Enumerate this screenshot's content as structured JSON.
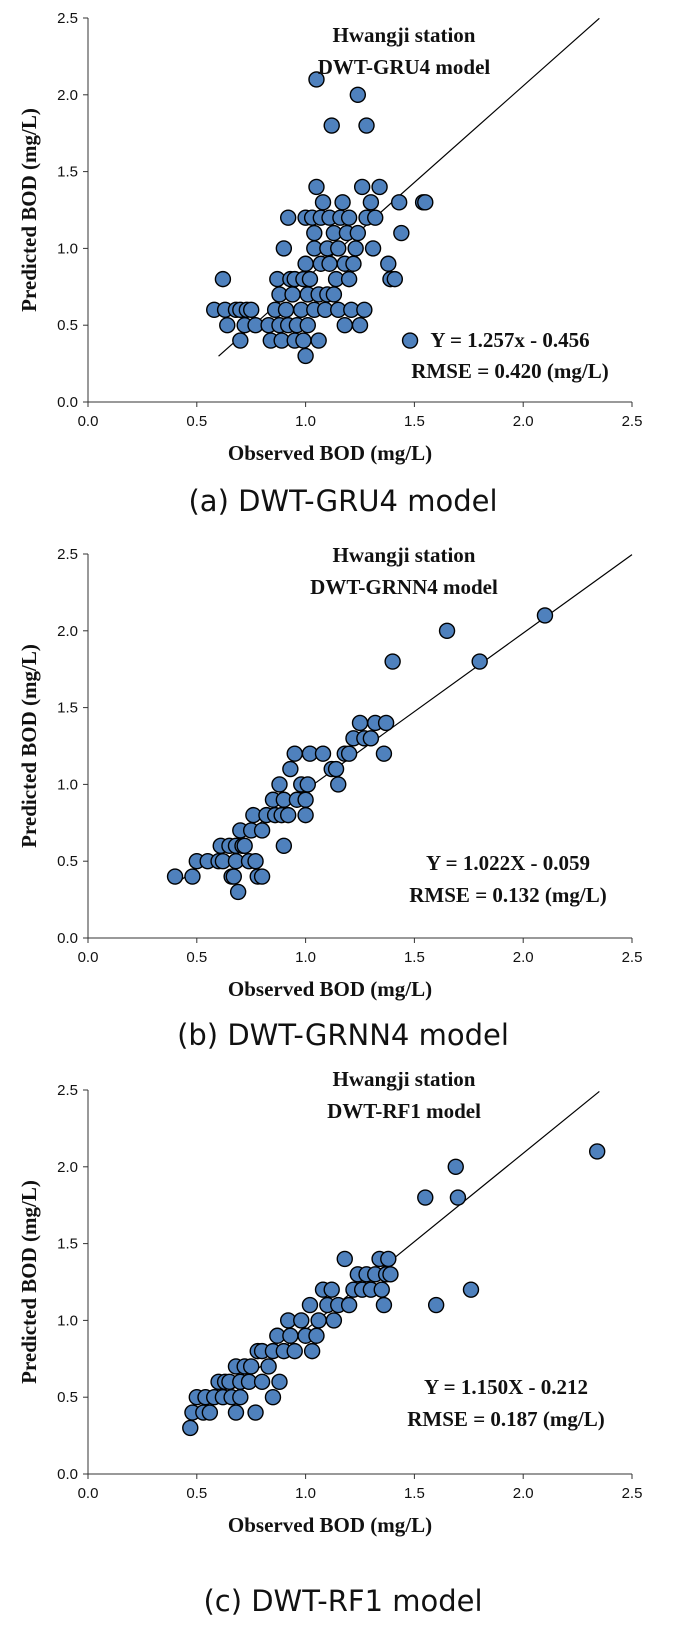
{
  "chart_data": [
    {
      "type": "scatter",
      "caption": "(a) DWT-GRU4 model",
      "title_line1": "Hwangji station",
      "title_line2": "DWT-GRU4  model",
      "xlabel": "Observed BOD (mg/L)",
      "ylabel": "Predicted BOD  (mg/L)",
      "xlim": [
        0,
        2.5
      ],
      "ylim": [
        0,
        2.5
      ],
      "xticks": [
        "0.0",
        "0.5",
        "1.0",
        "1.5",
        "2.0",
        "2.5"
      ],
      "yticks": [
        "0.0",
        "0.5",
        "1.0",
        "1.5",
        "2.0",
        "2.5"
      ],
      "equation": "Y = 1.257x - 0.456",
      "rmse": "RMSE = 0.420 (mg/L)",
      "fit": {
        "slope": 1.257,
        "intercept": -0.456,
        "x_range": [
          0.6,
          2.35
        ]
      },
      "marker_color": "#4f81bd",
      "points": [
        [
          0.58,
          0.6
        ],
        [
          0.62,
          0.8
        ],
        [
          0.63,
          0.6
        ],
        [
          0.64,
          0.5
        ],
        [
          0.68,
          0.6
        ],
        [
          0.7,
          0.4
        ],
        [
          0.7,
          0.6
        ],
        [
          0.72,
          0.5
        ],
        [
          0.73,
          0.6
        ],
        [
          0.75,
          0.6
        ],
        [
          0.77,
          0.5
        ],
        [
          0.83,
          0.5
        ],
        [
          0.84,
          0.4
        ],
        [
          0.86,
          0.6
        ],
        [
          0.87,
          0.8
        ],
        [
          0.88,
          0.7
        ],
        [
          0.88,
          0.5
        ],
        [
          0.89,
          0.4
        ],
        [
          0.9,
          1.0
        ],
        [
          0.91,
          0.6
        ],
        [
          0.92,
          0.5
        ],
        [
          0.92,
          1.2
        ],
        [
          0.93,
          0.8
        ],
        [
          0.94,
          0.7
        ],
        [
          0.95,
          0.8
        ],
        [
          0.95,
          0.4
        ],
        [
          0.96,
          0.5
        ],
        [
          0.98,
          0.6
        ],
        [
          0.99,
          0.4
        ],
        [
          0.99,
          0.8
        ],
        [
          1.0,
          0.3
        ],
        [
          1.0,
          0.9
        ],
        [
          1.0,
          1.2
        ],
        [
          1.01,
          0.5
        ],
        [
          1.01,
          0.7
        ],
        [
          1.02,
          0.8
        ],
        [
          1.03,
          1.2
        ],
        [
          1.04,
          0.6
        ],
        [
          1.04,
          1.0
        ],
        [
          1.04,
          1.1
        ],
        [
          1.05,
          1.4
        ],
        [
          1.05,
          2.1
        ],
        [
          1.06,
          0.7
        ],
        [
          1.06,
          0.4
        ],
        [
          1.07,
          0.9
        ],
        [
          1.07,
          1.2
        ],
        [
          1.08,
          1.3
        ],
        [
          1.09,
          0.6
        ],
        [
          1.1,
          0.7
        ],
        [
          1.1,
          1.0
        ],
        [
          1.11,
          0.9
        ],
        [
          1.11,
          1.2
        ],
        [
          1.12,
          1.8
        ],
        [
          1.13,
          0.7
        ],
        [
          1.13,
          1.1
        ],
        [
          1.14,
          0.8
        ],
        [
          1.15,
          0.6
        ],
        [
          1.15,
          1.0
        ],
        [
          1.16,
          1.2
        ],
        [
          1.17,
          1.3
        ],
        [
          1.18,
          0.5
        ],
        [
          1.18,
          0.9
        ],
        [
          1.19,
          1.1
        ],
        [
          1.2,
          1.2
        ],
        [
          1.2,
          0.8
        ],
        [
          1.21,
          0.6
        ],
        [
          1.22,
          0.9
        ],
        [
          1.23,
          1.0
        ],
        [
          1.24,
          1.1
        ],
        [
          1.24,
          2.0
        ],
        [
          1.25,
          0.5
        ],
        [
          1.26,
          1.4
        ],
        [
          1.27,
          0.6
        ],
        [
          1.28,
          1.2
        ],
        [
          1.28,
          1.8
        ],
        [
          1.3,
          1.3
        ],
        [
          1.31,
          1.0
        ],
        [
          1.32,
          1.2
        ],
        [
          1.34,
          1.4
        ],
        [
          1.38,
          0.9
        ],
        [
          1.39,
          0.8
        ],
        [
          1.41,
          0.8
        ],
        [
          1.43,
          1.3
        ],
        [
          1.44,
          1.1
        ],
        [
          1.48,
          0.4
        ],
        [
          1.54,
          1.3
        ],
        [
          1.55,
          1.3
        ]
      ]
    },
    {
      "type": "scatter",
      "caption": "(b) DWT-GRNN4 model",
      "title_line1": "Hwangji station",
      "title_line2": "DWT-GRNN4  model",
      "xlabel": "Observed BOD (mg/L)",
      "ylabel": "Predicted BOD  (mg/L)",
      "xlim": [
        0,
        2.5
      ],
      "ylim": [
        0,
        2.5
      ],
      "xticks": [
        "0.0",
        "0.5",
        "1.0",
        "1.5",
        "2.0",
        "2.5"
      ],
      "yticks": [
        "0.0",
        "0.5",
        "1.0",
        "1.5",
        "2.0",
        "2.5"
      ],
      "equation": "Y = 1.022X - 0.059",
      "rmse": "RMSE = 0.132 (mg/L)",
      "fit": {
        "slope": 1.022,
        "intercept": -0.059,
        "x_range": [
          0.4,
          2.5
        ]
      },
      "marker_color": "#4f81bd",
      "points": [
        [
          0.4,
          0.4
        ],
        [
          0.48,
          0.4
        ],
        [
          0.5,
          0.5
        ],
        [
          0.55,
          0.5
        ],
        [
          0.6,
          0.5
        ],
        [
          0.61,
          0.6
        ],
        [
          0.62,
          0.5
        ],
        [
          0.65,
          0.6
        ],
        [
          0.66,
          0.4
        ],
        [
          0.67,
          0.4
        ],
        [
          0.68,
          0.5
        ],
        [
          0.68,
          0.6
        ],
        [
          0.69,
          0.3
        ],
        [
          0.7,
          0.7
        ],
        [
          0.71,
          0.6
        ],
        [
          0.72,
          0.6
        ],
        [
          0.74,
          0.5
        ],
        [
          0.75,
          0.7
        ],
        [
          0.76,
          0.8
        ],
        [
          0.77,
          0.5
        ],
        [
          0.78,
          0.4
        ],
        [
          0.8,
          0.4
        ],
        [
          0.8,
          0.7
        ],
        [
          0.82,
          0.8
        ],
        [
          0.85,
          0.9
        ],
        [
          0.86,
          0.8
        ],
        [
          0.88,
          1.0
        ],
        [
          0.89,
          0.8
        ],
        [
          0.9,
          0.6
        ],
        [
          0.9,
          0.9
        ],
        [
          0.92,
          0.8
        ],
        [
          0.93,
          1.1
        ],
        [
          0.95,
          1.2
        ],
        [
          0.96,
          0.9
        ],
        [
          0.98,
          1.0
        ],
        [
          1.0,
          0.9
        ],
        [
          1.0,
          0.8
        ],
        [
          1.01,
          1.0
        ],
        [
          1.02,
          1.2
        ],
        [
          1.08,
          1.2
        ],
        [
          1.12,
          1.1
        ],
        [
          1.14,
          1.1
        ],
        [
          1.15,
          1.0
        ],
        [
          1.18,
          1.2
        ],
        [
          1.2,
          1.2
        ],
        [
          1.22,
          1.3
        ],
        [
          1.25,
          1.4
        ],
        [
          1.27,
          1.3
        ],
        [
          1.3,
          1.3
        ],
        [
          1.32,
          1.4
        ],
        [
          1.36,
          1.2
        ],
        [
          1.37,
          1.4
        ],
        [
          1.4,
          1.8
        ],
        [
          1.65,
          2.0
        ],
        [
          1.8,
          1.8
        ],
        [
          2.1,
          2.1
        ]
      ]
    },
    {
      "type": "scatter",
      "caption": "(c) DWT-RF1 model",
      "title_line1": "Hwangji station",
      "title_line2": "DWT-RF1 model",
      "xlabel": "Observed BOD (mg/L)",
      "ylabel": "Predicted BOD  (mg/L)",
      "xlim": [
        0,
        2.5
      ],
      "ylim": [
        0,
        2.5
      ],
      "xticks": [
        "0.0",
        "0.5",
        "1.0",
        "1.5",
        "2.0",
        "2.5"
      ],
      "yticks": [
        "0.0",
        "0.5",
        "1.0",
        "1.5",
        "2.0",
        "2.5"
      ],
      "equation": "Y = 1.150X - 0.212",
      "rmse": "RMSE = 0.187 (mg/L)",
      "fit": {
        "slope": 1.15,
        "intercept": -0.212,
        "x_range": [
          0.5,
          2.35
        ]
      },
      "marker_color": "#4f81bd",
      "points": [
        [
          0.47,
          0.3
        ],
        [
          0.48,
          0.4
        ],
        [
          0.5,
          0.5
        ],
        [
          0.53,
          0.4
        ],
        [
          0.54,
          0.5
        ],
        [
          0.56,
          0.4
        ],
        [
          0.58,
          0.5
        ],
        [
          0.6,
          0.6
        ],
        [
          0.62,
          0.5
        ],
        [
          0.63,
          0.6
        ],
        [
          0.65,
          0.6
        ],
        [
          0.66,
          0.5
        ],
        [
          0.68,
          0.7
        ],
        [
          0.68,
          0.4
        ],
        [
          0.7,
          0.5
        ],
        [
          0.7,
          0.6
        ],
        [
          0.72,
          0.7
        ],
        [
          0.74,
          0.6
        ],
        [
          0.75,
          0.7
        ],
        [
          0.77,
          0.4
        ],
        [
          0.78,
          0.8
        ],
        [
          0.8,
          0.6
        ],
        [
          0.8,
          0.8
        ],
        [
          0.83,
          0.7
        ],
        [
          0.85,
          0.8
        ],
        [
          0.85,
          0.5
        ],
        [
          0.87,
          0.9
        ],
        [
          0.88,
          0.6
        ],
        [
          0.9,
          0.8
        ],
        [
          0.92,
          1.0
        ],
        [
          0.93,
          0.9
        ],
        [
          0.95,
          0.8
        ],
        [
          0.98,
          1.0
        ],
        [
          1.0,
          0.9
        ],
        [
          1.02,
          1.1
        ],
        [
          1.03,
          0.8
        ],
        [
          1.05,
          0.9
        ],
        [
          1.06,
          1.0
        ],
        [
          1.08,
          1.2
        ],
        [
          1.1,
          1.1
        ],
        [
          1.12,
          1.2
        ],
        [
          1.13,
          1.0
        ],
        [
          1.15,
          1.1
        ],
        [
          1.18,
          1.4
        ],
        [
          1.2,
          1.1
        ],
        [
          1.22,
          1.2
        ],
        [
          1.24,
          1.3
        ],
        [
          1.26,
          1.2
        ],
        [
          1.28,
          1.3
        ],
        [
          1.3,
          1.2
        ],
        [
          1.32,
          1.3
        ],
        [
          1.34,
          1.4
        ],
        [
          1.35,
          1.2
        ],
        [
          1.36,
          1.1
        ],
        [
          1.37,
          1.3
        ],
        [
          1.38,
          1.4
        ],
        [
          1.39,
          1.3
        ],
        [
          1.55,
          1.8
        ],
        [
          1.6,
          1.1
        ],
        [
          1.69,
          2.0
        ],
        [
          1.7,
          1.8
        ],
        [
          1.76,
          1.2
        ],
        [
          2.34,
          2.1
        ]
      ]
    }
  ]
}
